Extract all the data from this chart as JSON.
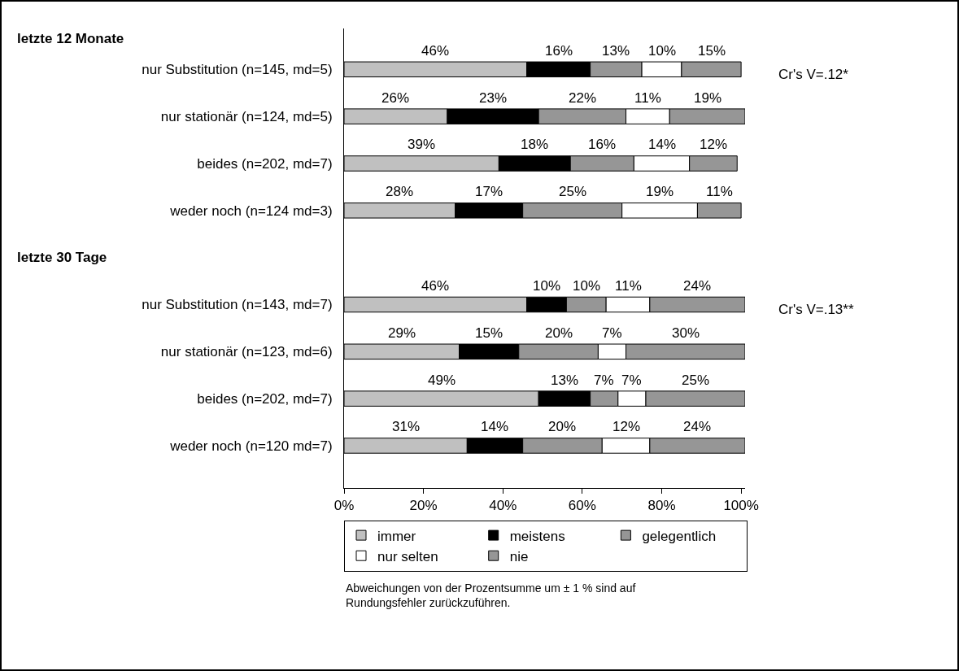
{
  "chart_data": {
    "type": "bar",
    "orientation": "horizontal",
    "stacked": true,
    "categories": [
      "nur Substitution (n=145, md=5)",
      "nur stationär (n=124, md=5)",
      "beides (n=202, md=7)",
      "weder noch (n=124 md=3)",
      null,
      "nur Substitution (n=143, md=7)",
      "nur stationär (n=123, md=6)",
      "beides (n=202, md=7)",
      "weder noch (n=120 md=7)"
    ],
    "series": [
      {
        "name": "immer",
        "color": "#c0c0c0",
        "values": [
          46,
          26,
          39,
          28,
          null,
          46,
          29,
          49,
          31
        ],
        "value_labels": [
          "46%",
          "26%",
          "39%",
          "28%",
          null,
          "46%",
          "29%",
          "49%",
          "31%"
        ]
      },
      {
        "name": "meistens",
        "color": "#000000",
        "values": [
          16,
          23,
          18,
          17,
          null,
          10,
          15,
          13,
          14
        ],
        "value_labels": [
          "16%",
          "23%",
          "18%",
          "17%",
          null,
          "10%",
          "15%",
          "13%",
          "14%"
        ]
      },
      {
        "name": "gelegentlich",
        "color": "#969696",
        "values": [
          13,
          22,
          16,
          25,
          null,
          10,
          20,
          7,
          20
        ],
        "value_labels": [
          "13%",
          "22%",
          "16%",
          "25%",
          null,
          "10%",
          "20%",
          "7%",
          "20%"
        ]
      },
      {
        "name": "nur selten",
        "color": "#ffffff",
        "values": [
          10,
          11,
          14,
          19,
          null,
          11,
          7,
          7,
          12
        ],
        "value_labels": [
          "10%",
          "11%",
          "14%",
          "19%",
          null,
          "11%",
          "7%",
          "7%",
          "12%"
        ]
      },
      {
        "name": "nie",
        "color": "#969696",
        "values": [
          15,
          19,
          12,
          11,
          null,
          24,
          30,
          25,
          24
        ],
        "value_labels": [
          "15%",
          "19%",
          "12%",
          "11%",
          null,
          "24%",
          "30%",
          "25%",
          "24%"
        ]
      }
    ],
    "xlim": [
      0,
      101
    ],
    "xticks": [
      {
        "value": 0,
        "label": "0%"
      },
      {
        "value": 20,
        "label": "20%"
      },
      {
        "value": 40,
        "label": "40%"
      },
      {
        "value": 60,
        "label": "60%"
      },
      {
        "value": 80,
        "label": "80%"
      },
      {
        "value": 100,
        "label": "100%"
      }
    ],
    "grid": false,
    "legend": "bottom",
    "annotations": [
      "letzte 12 Monate",
      "letzte 30 Tage",
      "Cr's V=.12*",
      "Cr's V=.13**",
      "Abweichungen von der Prozentsumme um ± 1 % sind auf Rundungsfehler zurückzuführen."
    ]
  }
}
